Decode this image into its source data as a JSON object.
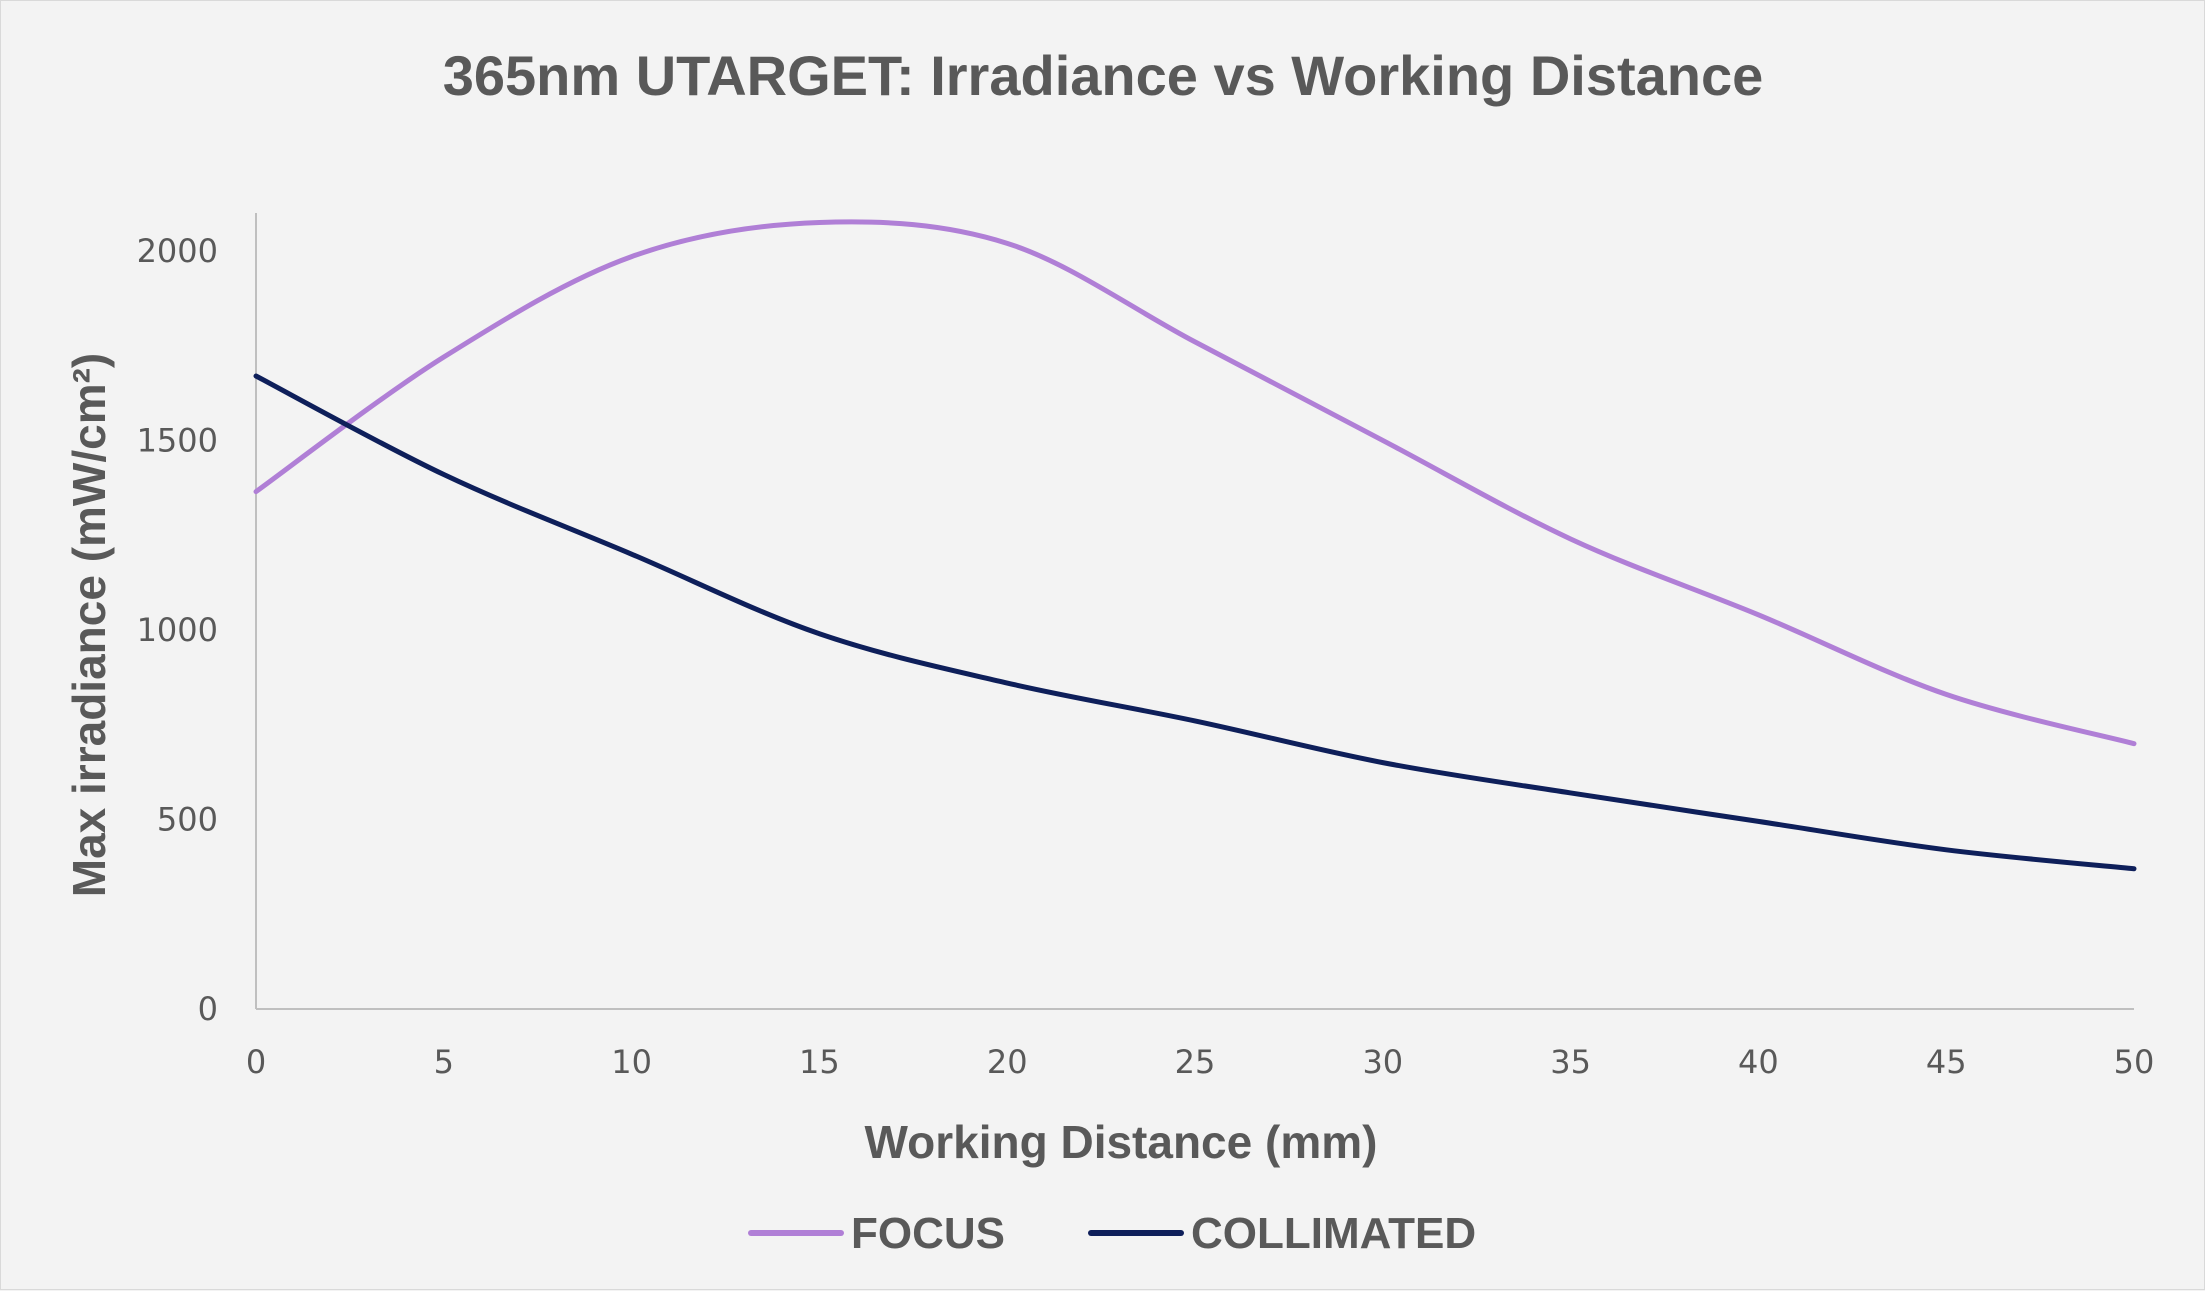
{
  "chart_data": {
    "type": "line",
    "title": "365nm UTARGET: Irradiance vs Working Distance",
    "xlabel": "Working Distance (mm)",
    "ylabel": "Max irradiance (mW/cm²)",
    "xlim": [
      0,
      50
    ],
    "ylim": [
      0,
      2100
    ],
    "x_ticks": [
      0,
      5,
      10,
      15,
      20,
      25,
      30,
      35,
      40,
      45,
      50
    ],
    "y_ticks": [
      0,
      500,
      1000,
      1500,
      2000
    ],
    "grid": false,
    "legend_position": "bottom",
    "x": [
      0,
      5,
      10,
      15,
      20,
      25,
      30,
      35,
      40,
      45,
      50
    ],
    "series": [
      {
        "name": "FOCUS",
        "color": "#b07fd6",
        "values": [
          1365,
          1720,
          1985,
          2075,
          2020,
          1760,
          1500,
          1240,
          1040,
          830,
          700
        ]
      },
      {
        "name": "COLLIMATED",
        "color": "#0e1f5a",
        "values": [
          1670,
          1410,
          1200,
          990,
          860,
          760,
          650,
          570,
          495,
          420,
          370
        ]
      }
    ]
  }
}
